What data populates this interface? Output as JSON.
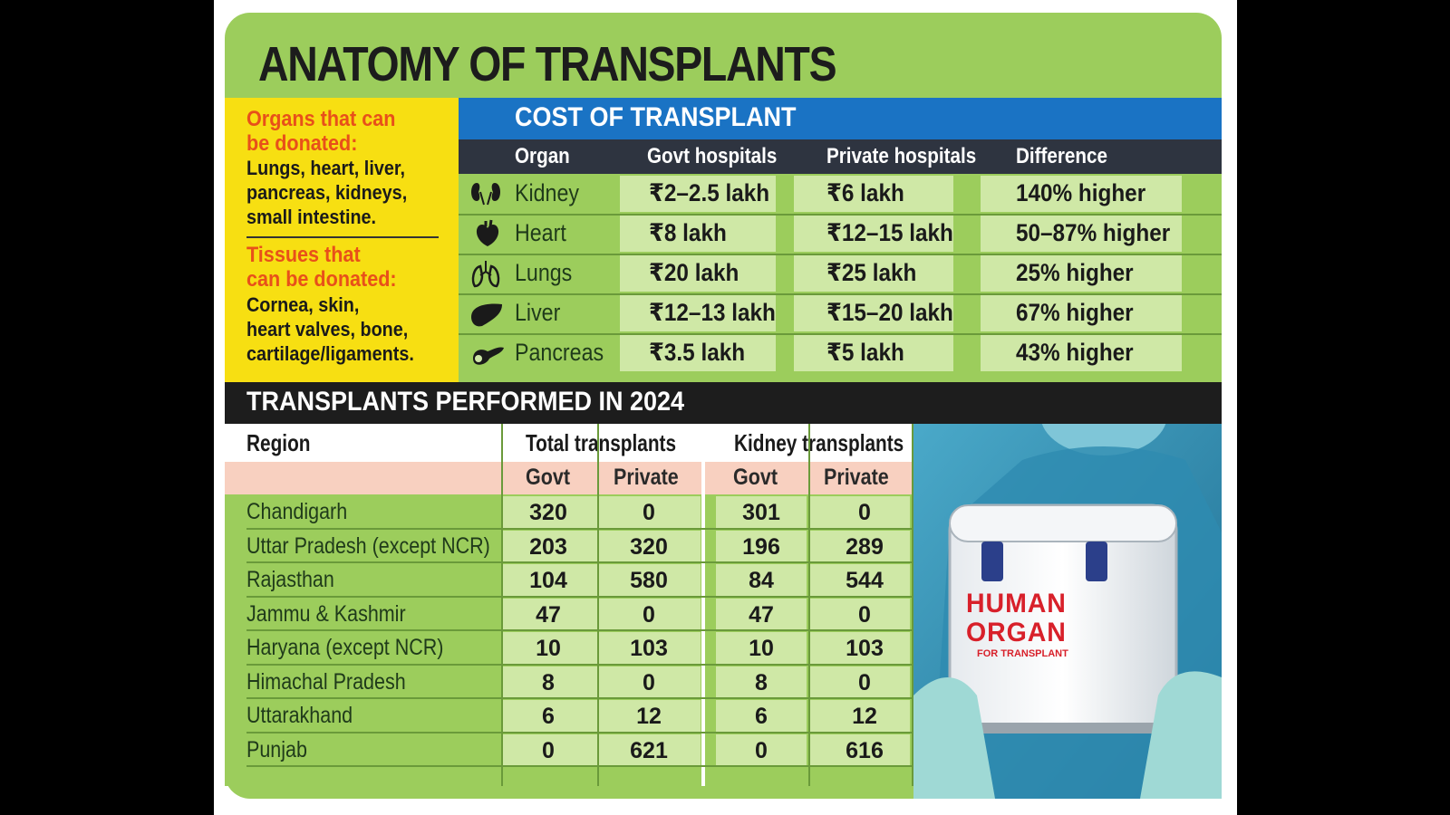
{
  "title": "ANATOMY OF TRANSPLANTS",
  "donation": {
    "organs_heading_1": "Organs that can",
    "organs_heading_2": "be donated:",
    "organs_list": [
      "Lungs, heart, liver,",
      "pancreas, kidneys,",
      "small intestine."
    ],
    "tissues_heading_1": "Tissues that",
    "tissues_heading_2": "can be donated:",
    "tissues_list": [
      "Cornea, skin,",
      "heart valves, bone,",
      "cartilage/ligaments."
    ]
  },
  "cost": {
    "title": "COST OF TRANSPLANT",
    "columns": [
      "Organ",
      "Govt hospitals",
      "Private hospitals",
      "Difference"
    ],
    "rows": [
      {
        "icon": "kidney-icon",
        "organ": "Kidney",
        "govt": "₹2–2.5 lakh",
        "private": "₹6 lakh",
        "diff": "140% higher"
      },
      {
        "icon": "heart-icon",
        "organ": "Heart",
        "govt": "₹8 lakh",
        "private": "₹12–15 lakh",
        "diff": "50–87% higher"
      },
      {
        "icon": "lungs-icon",
        "organ": "Lungs",
        "govt": "₹20 lakh",
        "private": "₹25 lakh",
        "diff": "25% higher"
      },
      {
        "icon": "liver-icon",
        "organ": "Liver",
        "govt": "₹12–13 lakh",
        "private": "₹15–20 lakh",
        "diff": "67% higher"
      },
      {
        "icon": "pancreas-icon",
        "organ": "Pancreas",
        "govt": "₹3.5 lakh",
        "private": "₹5 lakh",
        "diff": "43% higher"
      }
    ]
  },
  "transplants": {
    "title": "TRANSPLANTS PERFORMED IN 2024",
    "region_header": "Region",
    "total_header": "Total transplants",
    "kidney_header": "Kidney transplants",
    "sub_headers": [
      "Govt",
      "Private",
      "Govt",
      "Private"
    ],
    "rows": [
      {
        "region": "Chandigarh",
        "total_govt": "320",
        "total_private": "0",
        "kidney_govt": "301",
        "kidney_private": "0"
      },
      {
        "region": "Uttar Pradesh (except NCR)",
        "total_govt": "203",
        "total_private": "320",
        "kidney_govt": "196",
        "kidney_private": "289"
      },
      {
        "region": "Rajasthan",
        "total_govt": "104",
        "total_private": "580",
        "kidney_govt": "84",
        "kidney_private": "544"
      },
      {
        "region": "Jammu & Kashmir",
        "total_govt": "47",
        "total_private": "0",
        "kidney_govt": "47",
        "kidney_private": "0"
      },
      {
        "region": "Haryana (except NCR)",
        "total_govt": "10",
        "total_private": "103",
        "kidney_govt": "10",
        "kidney_private": "103"
      },
      {
        "region": "Himachal Pradesh",
        "total_govt": "8",
        "total_private": "0",
        "kidney_govt": "8",
        "kidney_private": "0"
      },
      {
        "region": "Uttarakhand",
        "total_govt": "6",
        "total_private": "12",
        "kidney_govt": "6",
        "kidney_private": "12"
      },
      {
        "region": "Punjab",
        "total_govt": "0",
        "total_private": "621",
        "kidney_govt": "0",
        "kidney_private": "616"
      }
    ]
  },
  "photo": {
    "box_label_1": "HUMAN",
    "box_label_2": "ORGAN",
    "box_label_3": "FOR TRANSPLANT"
  }
}
